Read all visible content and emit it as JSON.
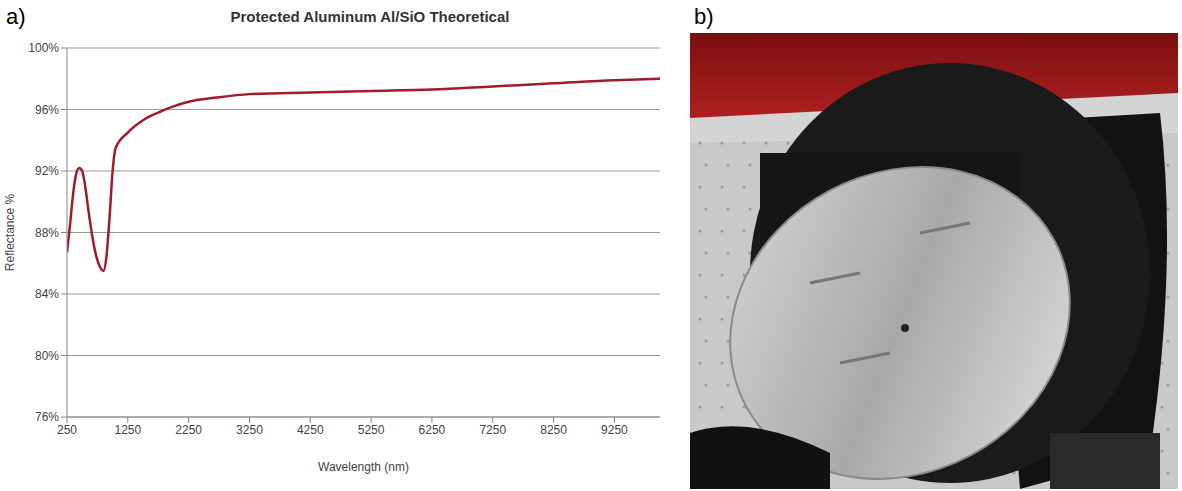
{
  "chart_data": {
    "type": "line",
    "label": "a)",
    "title": "Protected Aluminum Al/SiO Theoretical",
    "x_label": "Wavelength (nm)",
    "y_label": "Reflectance %",
    "x": [
      250,
      300,
      350,
      400,
      450,
      500,
      550,
      600,
      700,
      800,
      850,
      900,
      950,
      1000,
      1050,
      1250,
      1500,
      1750,
      2000,
      2250,
      2750,
      3250,
      4250,
      5250,
      6250,
      7250,
      8250,
      9250,
      10000
    ],
    "values": [
      86.7,
      88.5,
      90.5,
      91.8,
      92.2,
      92.0,
      91.0,
      89.5,
      87.0,
      85.7,
      85.5,
      86.5,
      89.0,
      92.0,
      93.5,
      94.5,
      95.3,
      95.8,
      96.2,
      96.5,
      96.8,
      97.0,
      97.1,
      97.2,
      97.3,
      97.5,
      97.7,
      97.9,
      98.0
    ],
    "color": "#a01c2c",
    "xlim": [
      250,
      10000
    ],
    "xticks": [
      250,
      1250,
      2250,
      3250,
      4250,
      5250,
      6250,
      7250,
      8250,
      9250
    ],
    "ylim": [
      76,
      100
    ],
    "yticks": [
      {
        "value": 76,
        "label": "76%"
      },
      {
        "value": 80,
        "label": "80%"
      },
      {
        "value": 84,
        "label": "84%"
      },
      {
        "value": 88,
        "label": "88%"
      },
      {
        "value": 92,
        "label": "92%"
      },
      {
        "value": 96,
        "label": "96%"
      },
      {
        "value": 100,
        "label": "100%"
      }
    ],
    "grid": true
  },
  "photo": {
    "label": "b)"
  }
}
